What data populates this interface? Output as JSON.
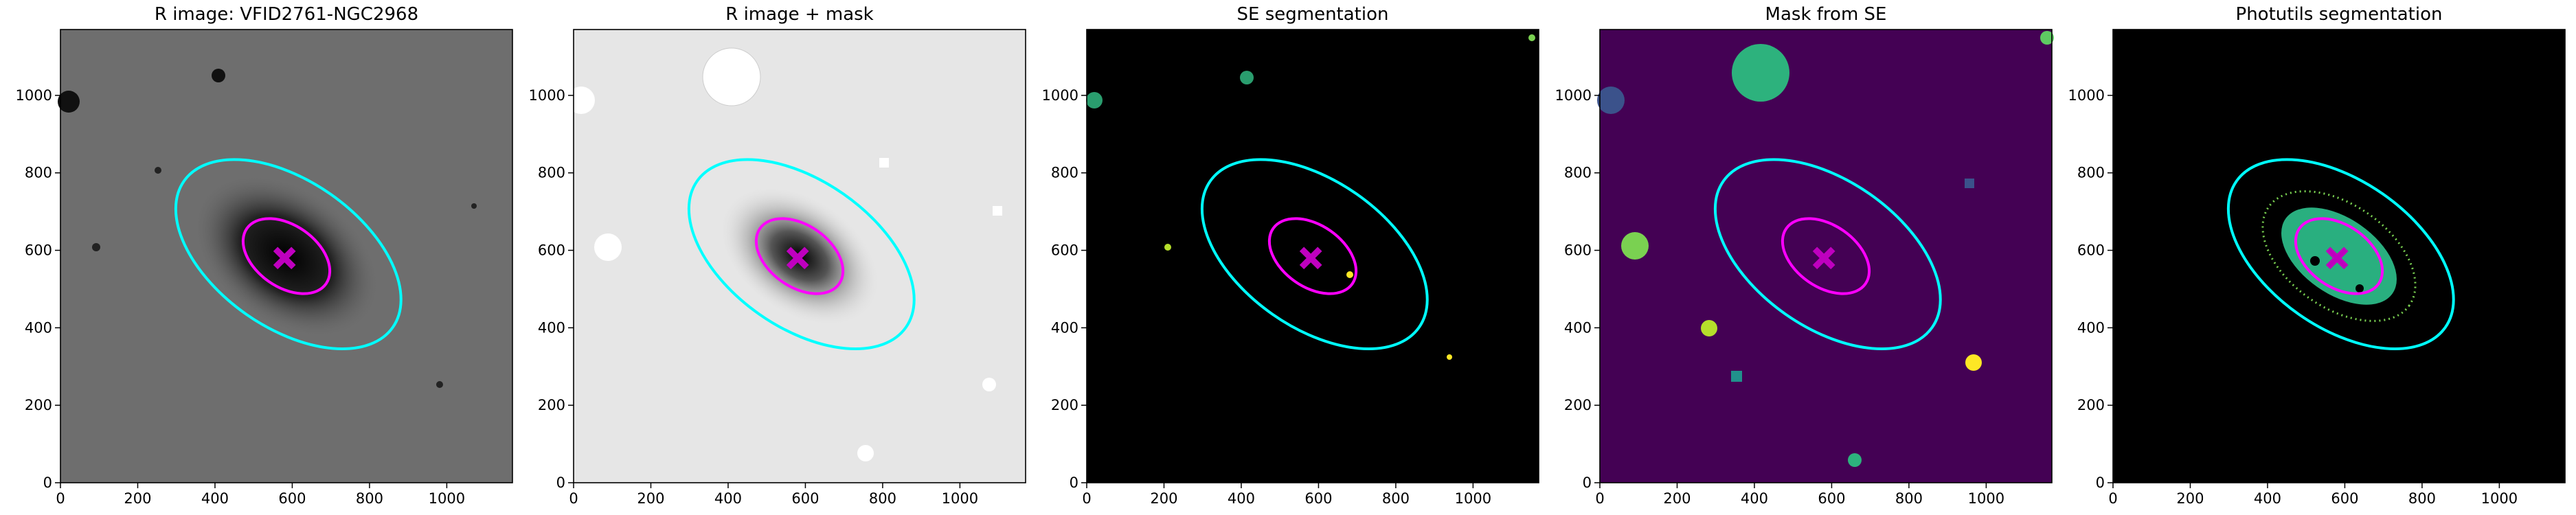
{
  "chart_data": [
    {
      "type": "image",
      "title": "R image: VFID2761-NGC2968",
      "xlim": [
        0,
        1170
      ],
      "ylim": [
        0,
        1170
      ],
      "xticks": [
        0,
        200,
        400,
        600,
        800,
        1000
      ],
      "yticks": [
        0,
        200,
        400,
        600,
        800,
        1000
      ],
      "ellipses": [
        {
          "cx": 590,
          "cy": 590,
          "a": 330,
          "b": 190,
          "angle": -35,
          "color": "#00ffff"
        },
        {
          "cx": 585,
          "cy": 585,
          "a": 125,
          "b": 80,
          "angle": -35,
          "color": "#ff00ff"
        }
      ],
      "marker": {
        "x": 580,
        "y": 580,
        "color": "#bf00bf"
      }
    },
    {
      "type": "image",
      "title": "R image + mask",
      "xlim": [
        0,
        1170
      ],
      "ylim": [
        0,
        1170
      ],
      "xticks": [
        0,
        200,
        400,
        600,
        800,
        1000
      ],
      "yticks": [
        0,
        200,
        400,
        600,
        800,
        1000
      ],
      "ellipses": [
        {
          "cx": 590,
          "cy": 590,
          "a": 330,
          "b": 190,
          "angle": -35,
          "color": "#00ffff"
        },
        {
          "cx": 585,
          "cy": 585,
          "a": 125,
          "b": 80,
          "angle": -35,
          "color": "#ff00ff"
        }
      ],
      "marker": {
        "x": 580,
        "y": 580,
        "color": "#bf00bf"
      }
    },
    {
      "type": "image",
      "title": "SE segmentation",
      "xlim": [
        0,
        1170
      ],
      "ylim": [
        0,
        1170
      ],
      "xticks": [
        0,
        200,
        400,
        600,
        800,
        1000
      ],
      "yticks": [
        0,
        200,
        400,
        600,
        800,
        1000
      ],
      "ellipses": [
        {
          "cx": 590,
          "cy": 590,
          "a": 330,
          "b": 190,
          "angle": -35,
          "color": "#00ffff"
        },
        {
          "cx": 585,
          "cy": 585,
          "a": 125,
          "b": 80,
          "angle": -35,
          "color": "#ff00ff"
        }
      ],
      "marker": {
        "x": 580,
        "y": 580,
        "color": "#bf00bf"
      }
    },
    {
      "type": "image",
      "title": "Mask from SE",
      "xlim": [
        0,
        1170
      ],
      "ylim": [
        0,
        1170
      ],
      "xticks": [
        0,
        200,
        400,
        600,
        800,
        1000
      ],
      "yticks": [
        0,
        200,
        400,
        600,
        800,
        1000
      ],
      "ellipses": [
        {
          "cx": 590,
          "cy": 590,
          "a": 330,
          "b": 190,
          "angle": -35,
          "color": "#00ffff"
        },
        {
          "cx": 585,
          "cy": 585,
          "a": 125,
          "b": 80,
          "angle": -35,
          "color": "#ff00ff"
        }
      ],
      "marker": {
        "x": 580,
        "y": 580,
        "color": "#bf00bf"
      }
    },
    {
      "type": "image",
      "title": "Photutils segmentation",
      "xlim": [
        0,
        1170
      ],
      "ylim": [
        0,
        1170
      ],
      "xticks": [
        0,
        200,
        400,
        600,
        800,
        1000
      ],
      "yticks": [
        0,
        200,
        400,
        600,
        800,
        1000
      ],
      "ellipses": [
        {
          "cx": 590,
          "cy": 590,
          "a": 330,
          "b": 190,
          "angle": -35,
          "color": "#00ffff"
        },
        {
          "cx": 585,
          "cy": 585,
          "a": 125,
          "b": 80,
          "angle": -35,
          "color": "#ff00ff"
        }
      ],
      "marker": {
        "x": 580,
        "y": 580,
        "color": "#bf00bf"
      }
    }
  ]
}
